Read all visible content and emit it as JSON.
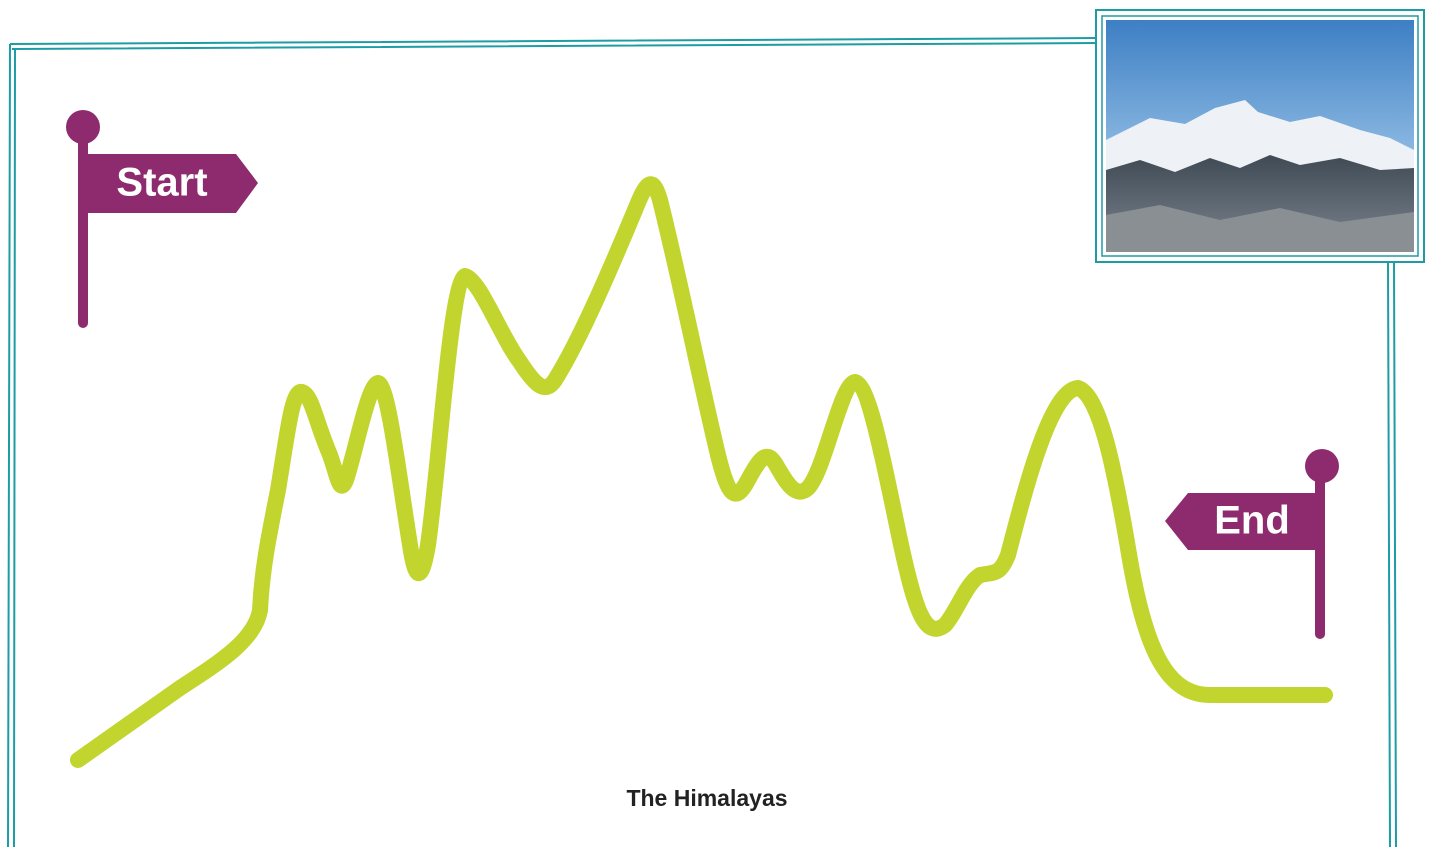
{
  "flags": {
    "start": "Start",
    "end": "End"
  },
  "caption": "The Himalayas"
}
